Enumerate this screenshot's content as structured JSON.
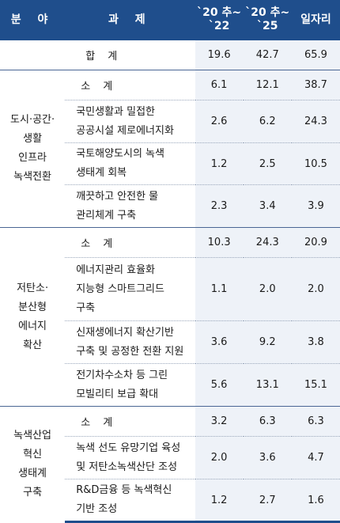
{
  "header": {
    "area": "분 야",
    "task": "과 제",
    "col1": "`20 추~\n`22",
    "col2": "`20 추~\n`25",
    "col3": "일자리"
  },
  "total": {
    "label": "합 계",
    "values": [
      "19.6",
      "42.7",
      "65.9"
    ]
  },
  "sections": [
    {
      "area": "도시·공간·\n생활\n인프라\n녹색전환",
      "subtotal": {
        "label": "소 계",
        "values": [
          "6.1",
          "12.1",
          "38.7"
        ]
      },
      "tasks": [
        {
          "label": "국민생활과 밀접한\n공공시설 제로에너지화",
          "values": [
            "2.6",
            "6.2",
            "24.3"
          ]
        },
        {
          "label": "국토해양도시의 녹색\n생태계 회복",
          "values": [
            "1.2",
            "2.5",
            "10.5"
          ]
        },
        {
          "label": "깨끗하고 안전한 물\n관리체계 구축",
          "values": [
            "2.3",
            "3.4",
            "3.9"
          ]
        }
      ]
    },
    {
      "area": "저탄소·\n분산형\n에너지\n확산",
      "subtotal": {
        "label": "소 계",
        "values": [
          "10.3",
          "24.3",
          "20.9"
        ]
      },
      "tasks": [
        {
          "label": "에너지관리 효율화\n지능형 스마트그리드\n구축",
          "values": [
            "1.1",
            "2.0",
            "2.0"
          ]
        },
        {
          "label": "신재생에너지 확산기반\n구축 및 공정한 전환 지원",
          "values": [
            "3.6",
            "9.2",
            "3.8"
          ]
        },
        {
          "label": "전기차수소차 등 그린\n모빌리티 보급 확대",
          "values": [
            "5.6",
            "13.1",
            "15.1"
          ]
        }
      ]
    },
    {
      "area": "녹색산업\n혁신\n생태계\n구축",
      "subtotal": {
        "label": "소 계",
        "values": [
          "3.2",
          "6.3",
          "6.3"
        ]
      },
      "tasks": [
        {
          "label": "녹색 선도 유망기업 육성\n및 저탄소녹색산단 조성",
          "values": [
            "2.0",
            "3.6",
            "4.7"
          ]
        },
        {
          "label": "R&D금융 등 녹색혁신\n기반 조성",
          "values": [
            "1.2",
            "2.7",
            "1.6"
          ]
        }
      ]
    }
  ]
}
